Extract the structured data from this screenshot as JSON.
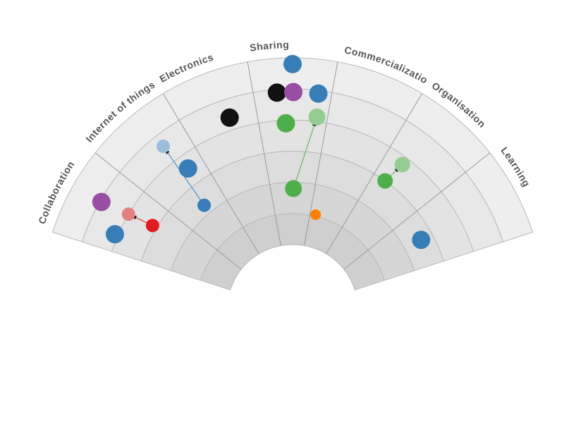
{
  "chart_data": {
    "type": "radar",
    "sectors": [
      "Collaboration",
      "Internet of things",
      "Electronics",
      "Sharing",
      "Commercialization",
      "Organisation",
      "Learning"
    ],
    "rings": 6,
    "ring_colors": [
      "#cfcfcf",
      "#d6d6d6",
      "#dddddd",
      "#e3e3e3",
      "#e8e8e8",
      "#eeeeee"
    ],
    "points": [
      {
        "id": "p-collab-purple",
        "sector": 0,
        "angle": 0.56,
        "ring": 4.95,
        "size": 13,
        "color": "#984ea3"
      },
      {
        "id": "p-collab-red",
        "sector": 0,
        "angle": 0.64,
        "ring": 3.15,
        "size": 9.5,
        "color": "#e41a1c",
        "prev": {
          "angle": 0.6,
          "ring": 4.0,
          "color": "#e48080"
        }
      },
      {
        "id": "p-iot-blue-1",
        "sector": 0,
        "angle": 0.25,
        "ring": 4.1,
        "size": 13,
        "color": "#377eb8"
      },
      {
        "id": "p-iot-blue-2",
        "sector": 1,
        "angle": 0.73,
        "ring": 3.55,
        "size": 13,
        "color": "#377eb8"
      },
      {
        "id": "p-iot-blue-3",
        "sector": 1,
        "angle": 0.55,
        "ring": 2.3,
        "size": 9.5,
        "color": "#377eb8",
        "prev": {
          "angle": 0.64,
          "ring": 4.6,
          "color": "#9bbcda"
        }
      },
      {
        "id": "p-elec-black",
        "sector": 2,
        "angle": 0.62,
        "ring": 4.4,
        "size": 13,
        "color": "#111111"
      },
      {
        "id": "p-share-black",
        "sector": 3,
        "angle": 0.3,
        "ring": 4.9,
        "size": 13,
        "color": "#111111"
      },
      {
        "id": "p-share-purple",
        "sector": 3,
        "angle": 0.51,
        "ring": 4.9,
        "size": 13,
        "color": "#984ea3"
      },
      {
        "id": "p-share-blue-1",
        "sector": 3,
        "angle": 0.5,
        "ring": 5.8,
        "size": 13,
        "color": "#377eb8"
      },
      {
        "id": "p-share-blue-2",
        "sector": 3,
        "angle": 0.83,
        "ring": 4.9,
        "size": 13,
        "color": "#377eb8"
      },
      {
        "id": "p-share-green-1",
        "sector": 3,
        "angle": 0.4,
        "ring": 3.9,
        "size": 13,
        "color": "#4daf4a"
      },
      {
        "id": "p-share-green-2",
        "sector": 3,
        "angle": 0.52,
        "ring": 1.8,
        "size": 12,
        "color": "#4daf4a",
        "prev": {
          "angle": 0.85,
          "ring": 4.15,
          "color": "#93cd91"
        }
      },
      {
        "id": "p-comm-orange",
        "sector": 4,
        "angle": 0.16,
        "ring": 1.05,
        "size": 7.5,
        "color": "#ff7f00"
      },
      {
        "id": "p-org-green",
        "sector": 5,
        "angle": 0.23,
        "ring": 3.0,
        "size": 11,
        "color": "#4daf4a",
        "prev": {
          "angle": 0.3,
          "ring": 3.75,
          "color": "#93cd91"
        }
      },
      {
        "id": "p-learn-blue",
        "sector": 6,
        "angle": 0.48,
        "ring": 2.6,
        "size": 13,
        "color": "#377eb8"
      }
    ]
  }
}
